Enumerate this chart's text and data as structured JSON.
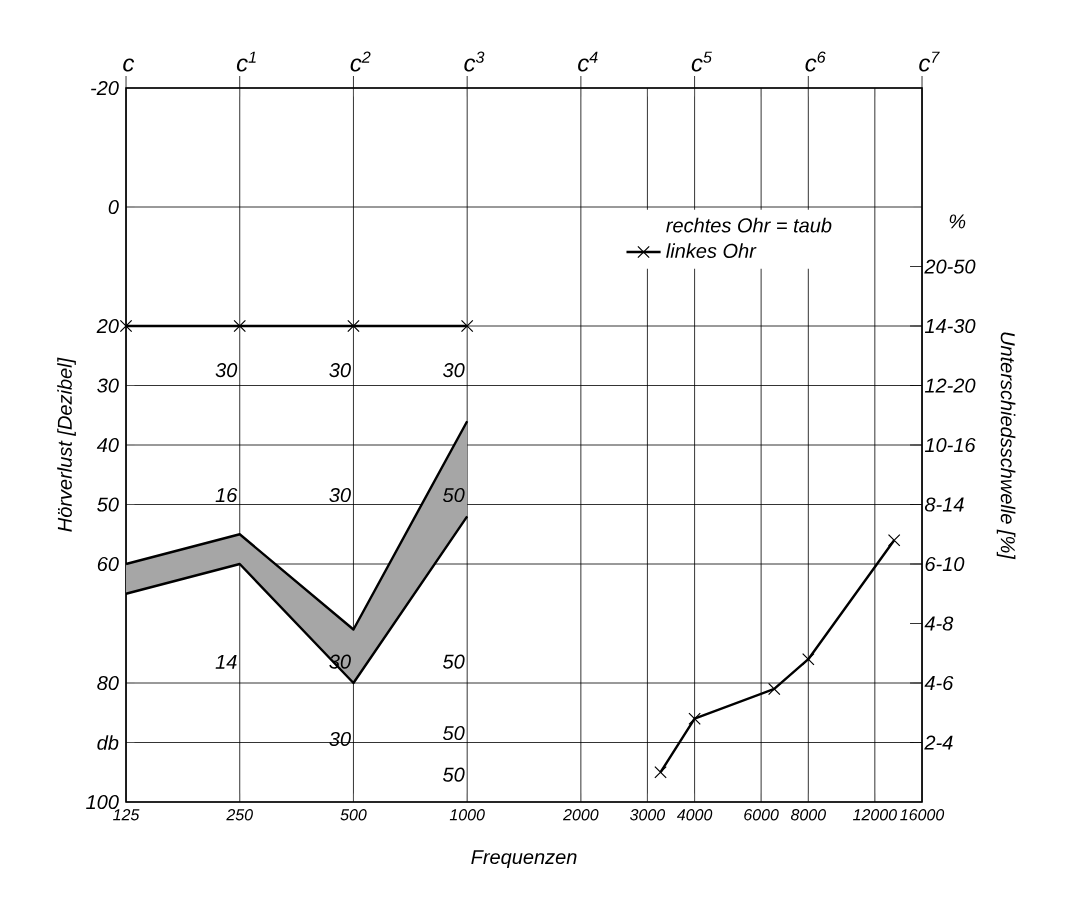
{
  "chart_data": {
    "type": "line",
    "xlabel": "Frequenzen",
    "ylabel": "Hörverlust [Dezibel]",
    "y2label": "Unterschiedsschwelle [%]",
    "legend_title": "rechtes Ohr = taub",
    "log": "x",
    "xlim": [
      125,
      16000
    ],
    "xticks": [
      125,
      250,
      500,
      1000,
      2000,
      3000,
      4000,
      6000,
      8000,
      12000,
      16000
    ],
    "ylim": [
      100,
      -20
    ],
    "yticks": [
      -20,
      0,
      20,
      30,
      40,
      50,
      60,
      80,
      {
        "value": 90,
        "label": "db"
      },
      100
    ],
    "grid": true,
    "legend": "top right",
    "marker": "cross",
    "line_style": "solid",
    "series": [
      {
        "name": "linkes Ohr",
        "color": "#000000",
        "x": [
          125,
          250,
          500,
          1000,
          2000,
          3250,
          4000,
          6500,
          8000,
          13500
        ],
        "values": [
          20,
          20,
          20,
          20,
          null,
          95,
          86,
          81,
          76,
          56
        ]
      },
      {
        "color": "#000000",
        "marker": "none",
        "x": [
          125,
          250,
          500,
          1000
        ],
        "values": [
          60,
          55,
          71,
          36
        ],
        "lower": [
          65,
          60,
          80,
          52
        ],
        "upper": [
          60,
          55,
          71,
          36
        ]
      }
    ],
    "annotations": [
      "c",
      "c$^{1}$",
      "c$^{2}$",
      "c$^{3}$",
      "c$^{4}$",
      "c$^{5}$",
      "c$^{6}$",
      "c$^{7}$",
      "20-50",
      "14-30",
      "12-20",
      "10-16",
      "8-14",
      "6-10",
      "4-8",
      "4-6",
      "2-4",
      "%",
      "30",
      "30",
      "30",
      "16",
      "30",
      "50",
      "14",
      "30",
      "50",
      "30",
      "50",
      "50"
    ]
  }
}
